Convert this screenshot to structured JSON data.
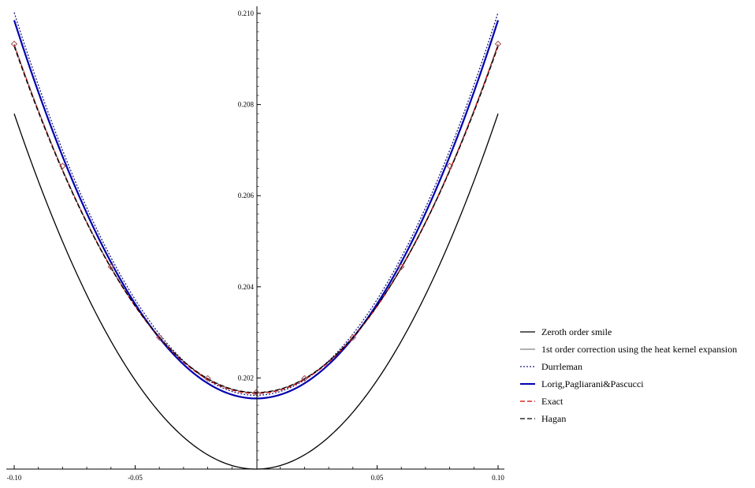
{
  "chart_data": {
    "type": "line",
    "xlim": [
      -0.1,
      0.1
    ],
    "ylim": [
      0.2,
      0.21
    ],
    "xticks": [
      -0.1,
      -0.05,
      0.05,
      0.1
    ],
    "xtick_labels": [
      "-0.10",
      "-0.05",
      "0.05",
      "0.10"
    ],
    "yticks": [
      0.202,
      0.204,
      0.206,
      0.208,
      0.21
    ],
    "ytick_labels": [
      "0.202",
      "0.204",
      "0.206",
      "0.208",
      "0.210"
    ],
    "grid": false,
    "legend_position": "right",
    "series": [
      {
        "name": "Zeroth order smile",
        "color": "#000000",
        "style": "solid",
        "vertex": 0.2,
        "curvature": 0.78
      },
      {
        "name": "1st order correction using the heat kernel expansion",
        "color": "#808080",
        "style": "solid",
        "vertex": 0.20168,
        "curvature": 0.765
      },
      {
        "name": "Durrleman",
        "color": "#1a1a80",
        "style": "dotted",
        "vertex": 0.20162,
        "curvature": 0.84
      },
      {
        "name": "Lorig,Pagliarani&Pascucci",
        "color": "#0000b0",
        "style": "solid",
        "vertex": 0.20155,
        "curvature": 0.83
      },
      {
        "name": "Exact",
        "color": "#cc0000",
        "style": "dashed",
        "vertex": 0.20166,
        "curvature": 0.765
      },
      {
        "name": "Hagan",
        "color": "#000000",
        "style": "dashed",
        "vertex": 0.20168,
        "curvature": 0.76
      }
    ],
    "markers": {
      "color": "#a05050",
      "x": [
        -0.1,
        -0.08,
        -0.06,
        -0.04,
        -0.02,
        0,
        0.02,
        0.04,
        0.06,
        0.08,
        0.1
      ],
      "y": [
        0.20933,
        0.20665,
        0.20444,
        0.20289,
        0.20199,
        0.20168,
        0.20199,
        0.20289,
        0.20444,
        0.20665,
        0.20933
      ]
    }
  }
}
